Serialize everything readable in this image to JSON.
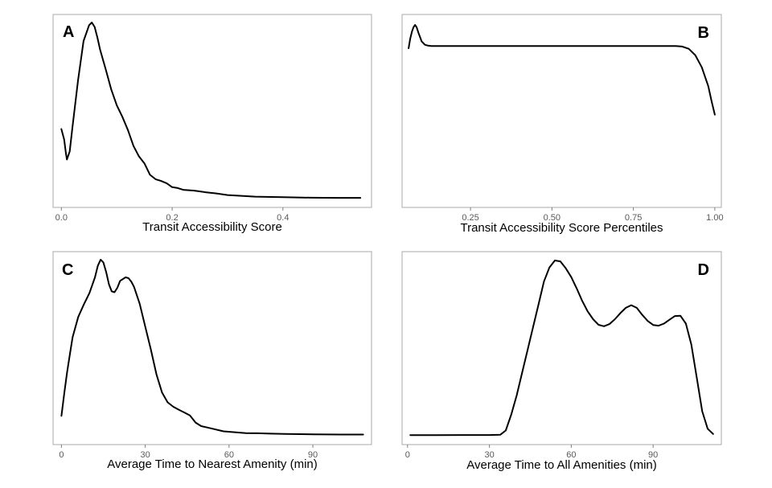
{
  "chart_data": [
    {
      "type": "line",
      "panel": "A",
      "xlabel": "Transit Accessibility Score",
      "ylabel": "",
      "xlim": [
        -0.015,
        0.56
      ],
      "ylim": [
        0,
        1
      ],
      "xticks": [
        0.0,
        0.2,
        0.4
      ],
      "xtick_labels": [
        "0.0",
        "0.2",
        "0.4"
      ],
      "yticks_shown": false,
      "grid": false,
      "series": [
        {
          "x": [
            0.0,
            0.005,
            0.008,
            0.01,
            0.015,
            0.02,
            0.03,
            0.04,
            0.05,
            0.055,
            0.06,
            0.065,
            0.07,
            0.08,
            0.09,
            0.1,
            0.11,
            0.12,
            0.13,
            0.14,
            0.15,
            0.16,
            0.17,
            0.18,
            0.19,
            0.2,
            0.21,
            0.22,
            0.24,
            0.26,
            0.28,
            0.3,
            0.35,
            0.4,
            0.45,
            0.5,
            0.54
          ],
          "y": [
            0.395,
            0.335,
            0.263,
            0.222,
            0.268,
            0.405,
            0.67,
            0.895,
            0.985,
            1.0,
            0.975,
            0.915,
            0.845,
            0.735,
            0.62,
            0.53,
            0.465,
            0.39,
            0.3,
            0.24,
            0.2,
            0.135,
            0.11,
            0.1,
            0.087,
            0.065,
            0.06,
            0.05,
            0.045,
            0.036,
            0.029,
            0.02,
            0.011,
            0.008,
            0.005,
            0.004,
            0.004
          ]
        }
      ]
    },
    {
      "type": "line",
      "panel": "B",
      "xlabel": "Transit Accessibility Score Percentiles",
      "ylabel": "",
      "xlim": [
        0.04,
        1.02
      ],
      "ylim": [
        0,
        1
      ],
      "xticks": [
        0.25,
        0.5,
        0.75,
        1.0
      ],
      "xtick_labels": [
        "0.25",
        "0.50",
        "0.75",
        "1.00"
      ],
      "yticks_shown": false,
      "grid": false,
      "series": [
        {
          "x": [
            0.06,
            0.065,
            0.07,
            0.075,
            0.08,
            0.085,
            0.09,
            0.1,
            0.11,
            0.12,
            0.13,
            0.14,
            0.15,
            0.2,
            0.3,
            0.4,
            0.5,
            0.6,
            0.7,
            0.8,
            0.88,
            0.9,
            0.92,
            0.94,
            0.96,
            0.98,
            0.99,
            1.0
          ],
          "y": [
            0.865,
            0.92,
            0.96,
            0.987,
            1.0,
            0.985,
            0.955,
            0.905,
            0.885,
            0.88,
            0.878,
            0.878,
            0.878,
            0.878,
            0.878,
            0.878,
            0.878,
            0.878,
            0.878,
            0.878,
            0.878,
            0.875,
            0.862,
            0.825,
            0.755,
            0.645,
            0.56,
            0.481
          ]
        }
      ]
    },
    {
      "type": "line",
      "panel": "C",
      "xlabel": "Average Time to Nearest Amenity (min)",
      "ylabel": "",
      "xlim": [
        -3,
        111
      ],
      "ylim": [
        0,
        1
      ],
      "xticks": [
        0,
        30,
        60,
        90
      ],
      "xtick_labels": [
        "0",
        "30",
        "60",
        "90"
      ],
      "yticks_shown": false,
      "grid": false,
      "series": [
        {
          "x": [
            0,
            1,
            2,
            3,
            4,
            6,
            8,
            10,
            12,
            13,
            14,
            15,
            16,
            17,
            18,
            19,
            20,
            21,
            22,
            23,
            24,
            25,
            26,
            28,
            30,
            32,
            34,
            36,
            38,
            40,
            42,
            44,
            46,
            48,
            50,
            54,
            58,
            62,
            66,
            70,
            75,
            80,
            90,
            100,
            108
          ],
          "y": [
            0.113,
            0.24,
            0.36,
            0.46,
            0.56,
            0.675,
            0.745,
            0.81,
            0.9,
            0.965,
            1.0,
            0.985,
            0.93,
            0.86,
            0.82,
            0.815,
            0.84,
            0.88,
            0.89,
            0.9,
            0.895,
            0.875,
            0.845,
            0.75,
            0.62,
            0.49,
            0.35,
            0.245,
            0.19,
            0.165,
            0.148,
            0.132,
            0.115,
            0.075,
            0.055,
            0.04,
            0.025,
            0.02,
            0.015,
            0.014,
            0.012,
            0.01,
            0.008,
            0.007,
            0.007
          ]
        }
      ]
    },
    {
      "type": "line",
      "panel": "D",
      "xlabel": "Average Time to All Amenities (min)",
      "ylabel": "",
      "xlim": [
        -2,
        115
      ],
      "ylim": [
        0,
        1
      ],
      "xticks": [
        0,
        30,
        60,
        90
      ],
      "xtick_labels": [
        "0",
        "30",
        "60",
        "90"
      ],
      "yticks_shown": false,
      "grid": false,
      "series": [
        {
          "x": [
            1,
            10,
            20,
            30,
            34,
            36,
            38,
            40,
            42,
            44,
            46,
            48,
            50,
            52,
            54,
            56,
            58,
            60,
            62,
            64,
            66,
            68,
            70,
            72,
            74,
            76,
            78,
            80,
            82,
            84,
            86,
            88,
            90,
            92,
            94,
            96,
            98,
            100,
            102,
            104,
            106,
            108,
            110,
            112
          ],
          "y": [
            0.003,
            0.003,
            0.004,
            0.004,
            0.006,
            0.03,
            0.12,
            0.23,
            0.36,
            0.49,
            0.62,
            0.75,
            0.88,
            0.96,
            1.0,
            0.995,
            0.955,
            0.905,
            0.84,
            0.77,
            0.71,
            0.665,
            0.633,
            0.625,
            0.637,
            0.665,
            0.7,
            0.73,
            0.745,
            0.73,
            0.69,
            0.655,
            0.632,
            0.628,
            0.64,
            0.662,
            0.683,
            0.685,
            0.64,
            0.52,
            0.33,
            0.14,
            0.04,
            0.01
          ]
        }
      ]
    }
  ]
}
